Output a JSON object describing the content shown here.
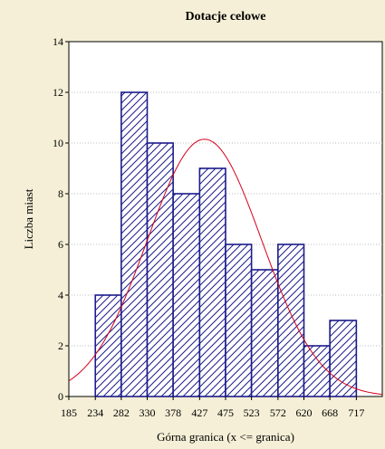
{
  "chart_data": {
    "type": "bar",
    "title": "Dotacje celowe",
    "xlabel": "Górna granica (x <= granica)",
    "ylabel": "Liczba miast",
    "x_ticks": [
      "185",
      "234",
      "282",
      "330",
      "378",
      "427",
      "475",
      "523",
      "572",
      "620",
      "668",
      "717"
    ],
    "bin_upper_bounds": [
      282,
      330,
      378,
      427,
      475,
      523,
      572,
      620,
      668,
      717,
      765
    ],
    "values": [
      4,
      12,
      10,
      8,
      9,
      6,
      5,
      6,
      2,
      3,
      0
    ],
    "ylim": [
      0,
      14
    ],
    "y_ticks": [
      0,
      2,
      4,
      6,
      8,
      10,
      12,
      14
    ],
    "xlim": [
      185,
      765
    ],
    "grid": true,
    "normal_fit": {
      "mean": 436,
      "sd": 106,
      "peak": 10.15
    },
    "colors": {
      "bar_edge": "#1c1c8c",
      "hatch": "#1c1c8c",
      "curve": "#d4001a",
      "background": "#f4efd6"
    }
  }
}
